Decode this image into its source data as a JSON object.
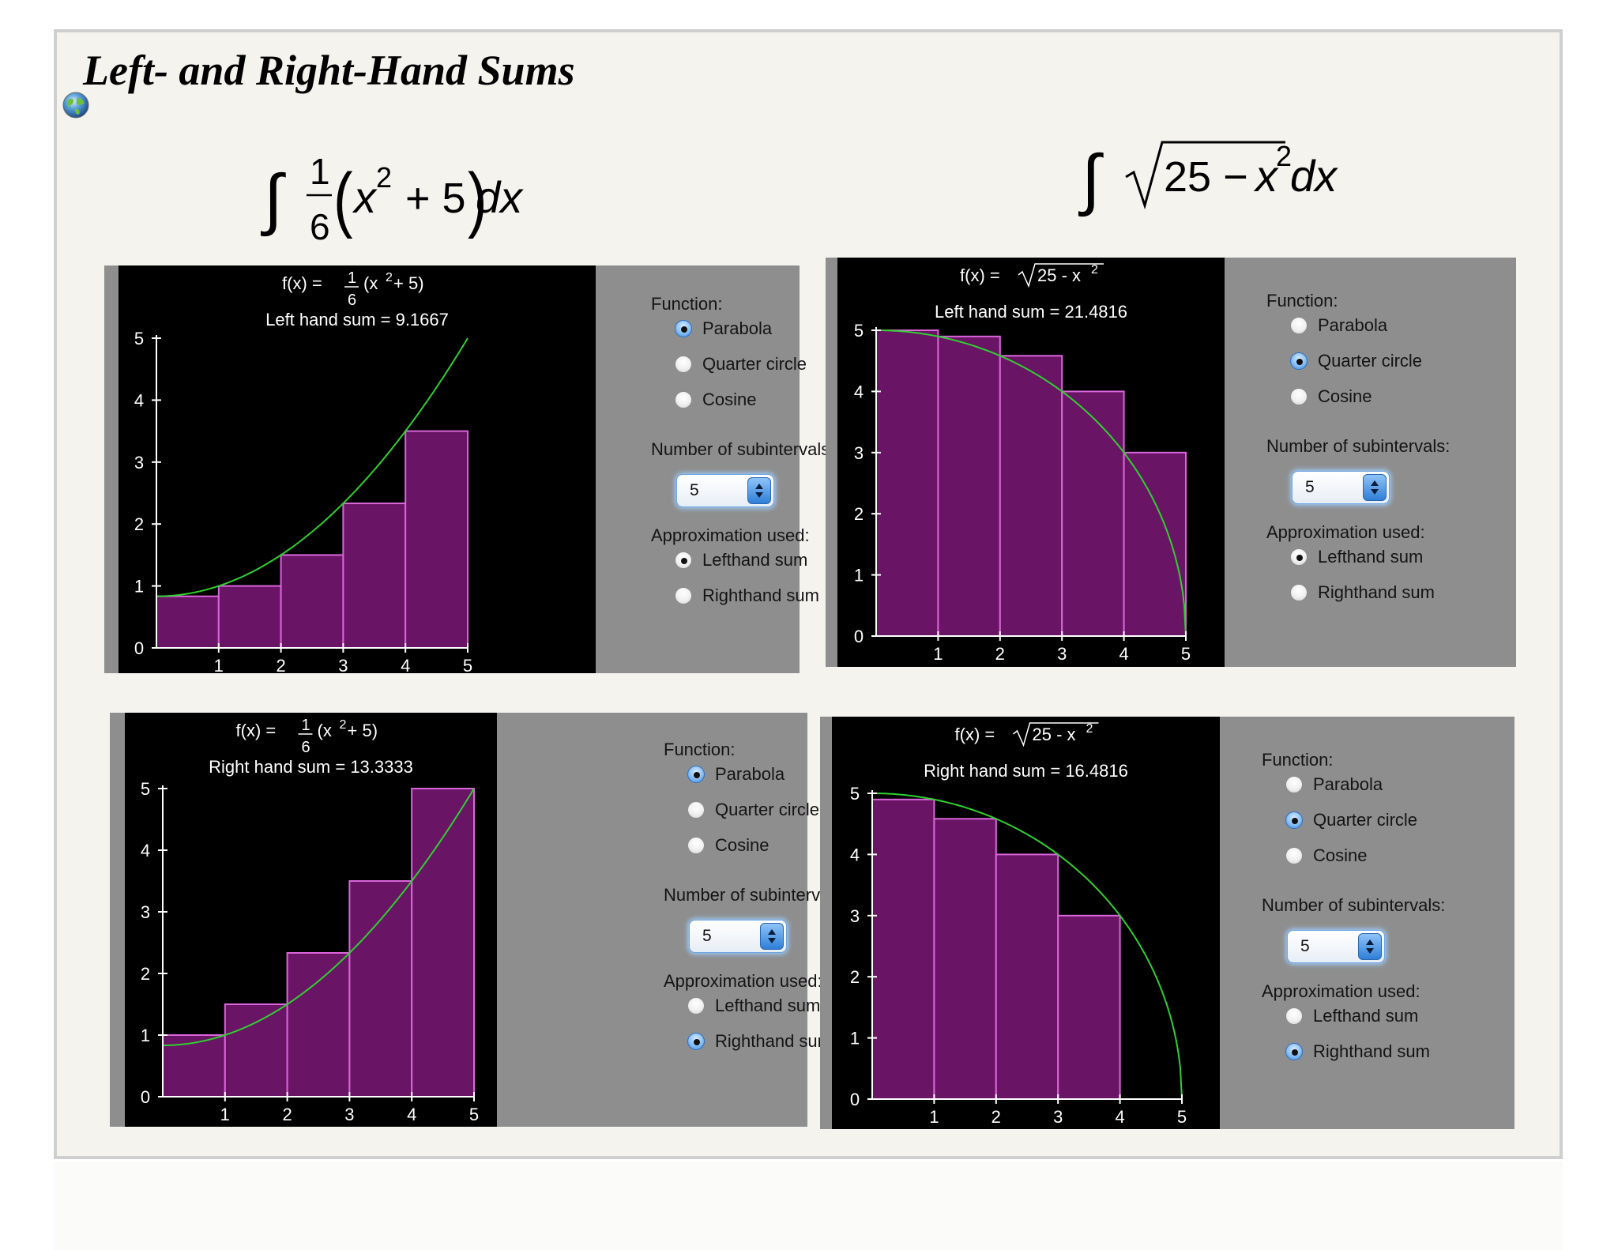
{
  "page": {
    "title": "Left- and Right-Hand Sums",
    "formula_left": {
      "integral": "∫",
      "numerator": "1",
      "denominator": "6",
      "open": "(",
      "base": "x",
      "exp": "2",
      "rest": " + 5",
      "close": ")",
      "dx": "dx"
    },
    "formula_right": {
      "integral": "∫",
      "radicand_prefix": "25 − ",
      "base": "x",
      "exp": "2",
      "dx": "dx"
    }
  },
  "controls_text": {
    "function_label": "Function:",
    "function_options": [
      "Parabola",
      "Quarter circle",
      "Cosine"
    ],
    "subintervals_label": "Number of subintervals:",
    "approximation_label": "Approximation used:",
    "approximation_options": [
      "Lefthand sum",
      "Righthand sum"
    ]
  },
  "panels": [
    {
      "id": "top-left",
      "fx_prefix": "f(x) = ",
      "fx_num": "1",
      "fx_den": "6",
      "fx_body": "(x",
      "fx_exp": "2",
      "fx_tail": " + 5)",
      "sum_text": "Left hand sum = 9.1667",
      "selected_function": "Parabola",
      "subintervals": "5",
      "selected_approximation": "Lefthand sum"
    },
    {
      "id": "top-right",
      "fx_prefix": "f(x) = ",
      "fx_rad": "25 - x",
      "fx_exp": "2",
      "sum_text": "Left hand sum = 21.4816",
      "selected_function": "Quarter circle",
      "subintervals": "5",
      "selected_approximation": "Lefthand sum"
    },
    {
      "id": "bottom-left",
      "fx_prefix": "f(x) = ",
      "fx_num": "1",
      "fx_den": "6",
      "fx_body": "(x",
      "fx_exp": "2",
      "fx_tail": " + 5)",
      "sum_text": "Right hand sum = 13.3333",
      "selected_function": "Parabola",
      "subintervals": "5",
      "selected_approximation": "Righthand sum"
    },
    {
      "id": "bottom-right",
      "fx_prefix": "f(x) = ",
      "fx_rad": "25 - x",
      "fx_exp": "2",
      "sum_text": "Right hand sum = 16.4816",
      "selected_function": "Quarter circle",
      "subintervals": "5",
      "selected_approximation": "Righthand sum"
    }
  ],
  "chart_data": [
    {
      "type": "bar",
      "function": "(x^2+5)/6",
      "method": "left",
      "x": [
        0,
        1,
        2,
        3,
        4,
        5
      ],
      "bar_heights": [
        0.8333,
        1.0,
        1.5,
        2.3333,
        3.5
      ],
      "xticks": [
        "1",
        "2",
        "3",
        "4",
        "5"
      ],
      "yticks": [
        "0",
        "1",
        "2",
        "3",
        "4",
        "5"
      ],
      "xlim": [
        0,
        5
      ],
      "ylim": [
        0,
        5
      ],
      "bar_color": "#6a1466",
      "bar_edge": "#d966d9",
      "curve_color": "#2fd02f",
      "background": "#000000"
    },
    {
      "type": "bar",
      "function": "sqrt(25-x^2)",
      "method": "left",
      "x": [
        0,
        1,
        2,
        3,
        4,
        5
      ],
      "bar_heights": [
        5.0,
        4.899,
        4.583,
        4.0,
        3.0
      ],
      "xticks": [
        "1",
        "2",
        "3",
        "4",
        "5"
      ],
      "yticks": [
        "0",
        "1",
        "2",
        "3",
        "4",
        "5"
      ],
      "xlim": [
        0,
        5
      ],
      "ylim": [
        0,
        5
      ],
      "bar_color": "#6a1466",
      "bar_edge": "#d966d9",
      "curve_color": "#2fd02f",
      "background": "#000000"
    },
    {
      "type": "bar",
      "function": "(x^2+5)/6",
      "method": "right",
      "x": [
        0,
        1,
        2,
        3,
        4,
        5
      ],
      "bar_heights": [
        1.0,
        1.5,
        2.3333,
        3.5,
        5.0
      ],
      "xticks": [
        "1",
        "2",
        "3",
        "4",
        "5"
      ],
      "yticks": [
        "0",
        "1",
        "2",
        "3",
        "4",
        "5"
      ],
      "xlim": [
        0,
        5
      ],
      "ylim": [
        0,
        5
      ],
      "bar_color": "#6a1466",
      "bar_edge": "#d966d9",
      "curve_color": "#2fd02f",
      "background": "#000000"
    },
    {
      "type": "bar",
      "function": "sqrt(25-x^2)",
      "method": "right",
      "x": [
        0,
        1,
        2,
        3,
        4,
        5
      ],
      "bar_heights": [
        4.899,
        4.583,
        4.0,
        3.0,
        0.0
      ],
      "xticks": [
        "1",
        "2",
        "3",
        "4",
        "5"
      ],
      "yticks": [
        "0",
        "1",
        "2",
        "3",
        "4",
        "5"
      ],
      "xlim": [
        0,
        5
      ],
      "ylim": [
        0,
        5
      ],
      "bar_color": "#6a1466",
      "bar_edge": "#d966d9",
      "curve_color": "#2fd02f",
      "background": "#000000"
    }
  ]
}
